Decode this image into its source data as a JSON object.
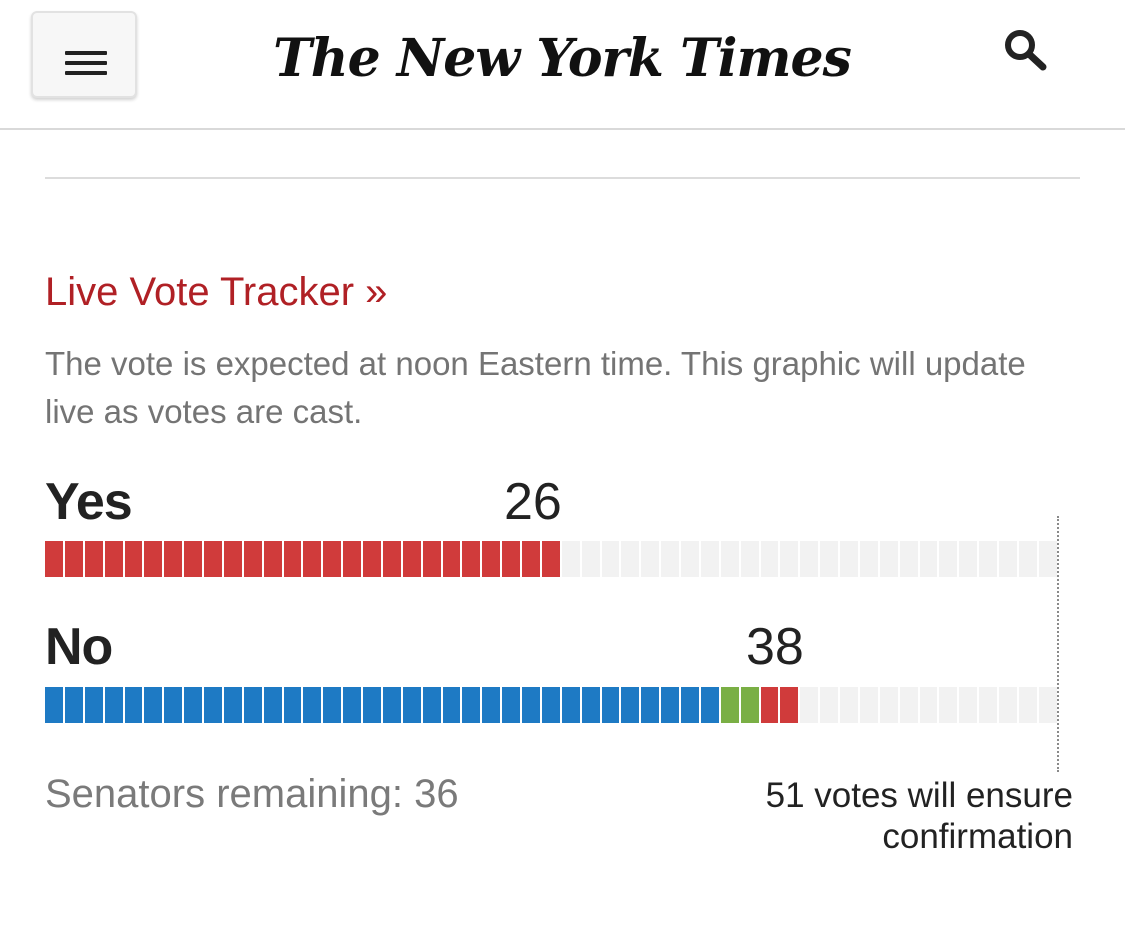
{
  "header": {
    "menu_icon": "hamburger-menu-icon",
    "logo_text": "The New York Times",
    "search_icon": "search-icon"
  },
  "tracker": {
    "link_label": "Live Vote Tracker »",
    "description": "The vote is expected at noon Eastern time. This graphic will update live as votes are cast."
  },
  "votes": {
    "yes": {
      "label": "Yes",
      "count": "26",
      "segments": {
        "red": 26,
        "blue": 0,
        "green": 0
      }
    },
    "no": {
      "label": "No",
      "count": "38",
      "segments": {
        "blue": 34,
        "green": 2,
        "red": 2
      }
    },
    "total_seats": 51,
    "remaining_text": "Senators remaining: 36",
    "threshold_text": "51 votes will ensure confirmation"
  },
  "colors": {
    "red": "#d03b3b",
    "blue": "#1e7ac4",
    "green": "#7aaf45",
    "empty": "#f2f2f2",
    "accent": "#b02025"
  }
}
